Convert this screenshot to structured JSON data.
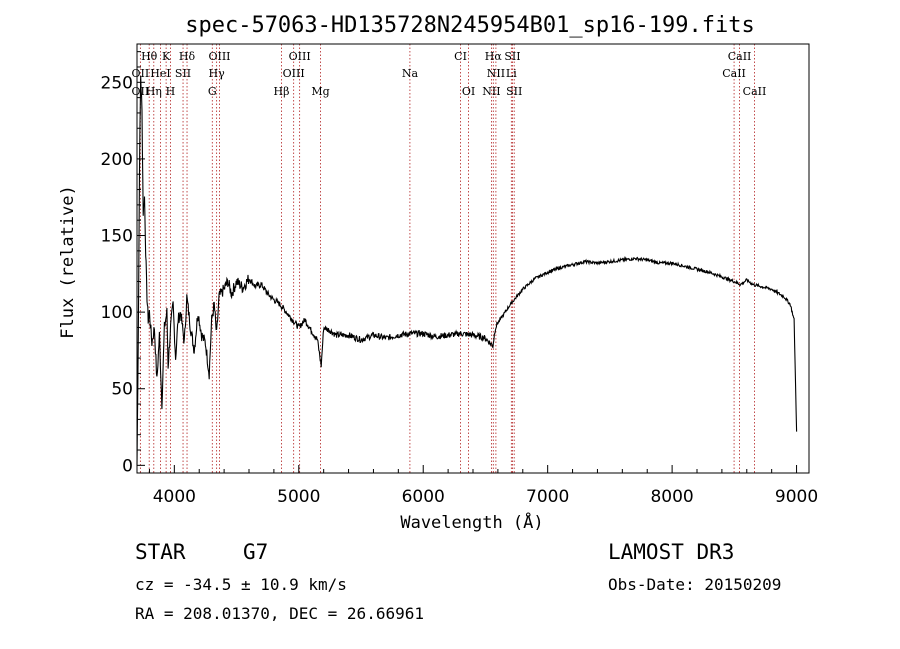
{
  "chart_data": {
    "type": "line",
    "title": "spec-57063-HD135728N245954B01_sp16-199.fits",
    "xlabel": "Wavelength (Å)",
    "ylabel": "Flux (relative)",
    "xlim": [
      3700,
      9100
    ],
    "ylim": [
      -5,
      275
    ],
    "xticks": [
      4000,
      5000,
      6000,
      7000,
      8000,
      9000
    ],
    "yticks": [
      0,
      50,
      100,
      150,
      200,
      250
    ],
    "series": [
      {
        "name": "spectrum",
        "x": [
          3700,
          3710,
          3720,
          3730,
          3740,
          3750,
          3760,
          3770,
          3780,
          3790,
          3800,
          3820,
          3840,
          3860,
          3880,
          3900,
          3920,
          3940,
          3950,
          3970,
          3990,
          4010,
          4030,
          4050,
          4080,
          4100,
          4130,
          4160,
          4190,
          4220,
          4250,
          4280,
          4300,
          4320,
          4340,
          4360,
          4400,
          4430,
          4460,
          4500,
          4550,
          4600,
          4650,
          4700,
          4750,
          4800,
          4850,
          4900,
          4950,
          5000,
          5050,
          5100,
          5150,
          5180,
          5200,
          5250,
          5300,
          5400,
          5500,
          5600,
          5700,
          5800,
          5900,
          6000,
          6100,
          6200,
          6300,
          6400,
          6500,
          6560,
          6580,
          6600,
          6700,
          6800,
          6900,
          7000,
          7100,
          7200,
          7300,
          7400,
          7500,
          7600,
          7700,
          7800,
          7900,
          8000,
          8100,
          8200,
          8300,
          8400,
          8500,
          8550,
          8600,
          8650,
          8700,
          8800,
          8900,
          8950,
          8980,
          9000
        ],
        "values": [
          0,
          80,
          195,
          255,
          230,
          165,
          175,
          140,
          110,
          95,
          100,
          80,
          90,
          55,
          85,
          40,
          90,
          100,
          65,
          90,
          105,
          70,
          95,
          100,
          80,
          110,
          90,
          75,
          100,
          85,
          80,
          60,
          95,
          105,
          85,
          110,
          115,
          120,
          112,
          120,
          116,
          122,
          117,
          118,
          112,
          108,
          105,
          100,
          95,
          90,
          95,
          88,
          82,
          65,
          90,
          88,
          85,
          85,
          82,
          85,
          83,
          85,
          86,
          86,
          84,
          85,
          86,
          85,
          83,
          78,
          90,
          93,
          105,
          115,
          122,
          126,
          129,
          131,
          133,
          132,
          133,
          134,
          135,
          134,
          132,
          132,
          130,
          128,
          126,
          123,
          120,
          118,
          121,
          118,
          117,
          115,
          110,
          105,
          95,
          22
        ]
      }
    ],
    "lines": [
      {
        "label": "Hθ",
        "wl": 3798,
        "row": 0
      },
      {
        "label": "K",
        "wl": 3934,
        "row": 0
      },
      {
        "label": "Hδ",
        "wl": 4102,
        "row": 0
      },
      {
        "label": "OIII",
        "wl": 4363,
        "row": 0
      },
      {
        "label": "OIII",
        "wl": 5007,
        "row": 0
      },
      {
        "label": "CI",
        "wl": 6300,
        "row": 0
      },
      {
        "label": "Hα",
        "wl": 6563,
        "row": 0
      },
      {
        "label": "SII",
        "wl": 6717,
        "row": 0
      },
      {
        "label": "CaII",
        "wl": 8542,
        "row": 0
      },
      {
        "label": "OII",
        "wl": 3727,
        "row": 1
      },
      {
        "label": "HeI",
        "wl": 3889,
        "row": 1
      },
      {
        "label": "SII",
        "wl": 4070,
        "row": 1
      },
      {
        "label": "Hγ",
        "wl": 4340,
        "row": 1
      },
      {
        "label": "OIII",
        "wl": 4959,
        "row": 1
      },
      {
        "label": "Na",
        "wl": 5893,
        "row": 1
      },
      {
        "label": "NII",
        "wl": 6584,
        "row": 1
      },
      {
        "label": "Li",
        "wl": 6708,
        "row": 1
      },
      {
        "label": "CaII",
        "wl": 8498,
        "row": 1
      },
      {
        "label": "OII",
        "wl": 3727,
        "row": 2
      },
      {
        "label": "Hη",
        "wl": 3835,
        "row": 2
      },
      {
        "label": "H",
        "wl": 3969,
        "row": 2
      },
      {
        "label": "G",
        "wl": 4305,
        "row": 2
      },
      {
        "label": "Hβ",
        "wl": 4861,
        "row": 2
      },
      {
        "label": "Mg",
        "wl": 5175,
        "row": 2
      },
      {
        "label": "OI",
        "wl": 6364,
        "row": 2
      },
      {
        "label": "NII",
        "wl": 6548,
        "row": 2
      },
      {
        "label": "SII",
        "wl": 6731,
        "row": 2
      },
      {
        "label": "CaII",
        "wl": 8662,
        "row": 2
      }
    ],
    "line_color": "#b22222"
  },
  "info": {
    "class": "STAR",
    "subclass": "G7",
    "survey": "LAMOST DR3",
    "cz": "cz = -34.5 ± 10.9 km/s",
    "obs_date": "Obs-Date: 20150209",
    "radec": "RA = 208.01370, DEC =  26.66961"
  }
}
